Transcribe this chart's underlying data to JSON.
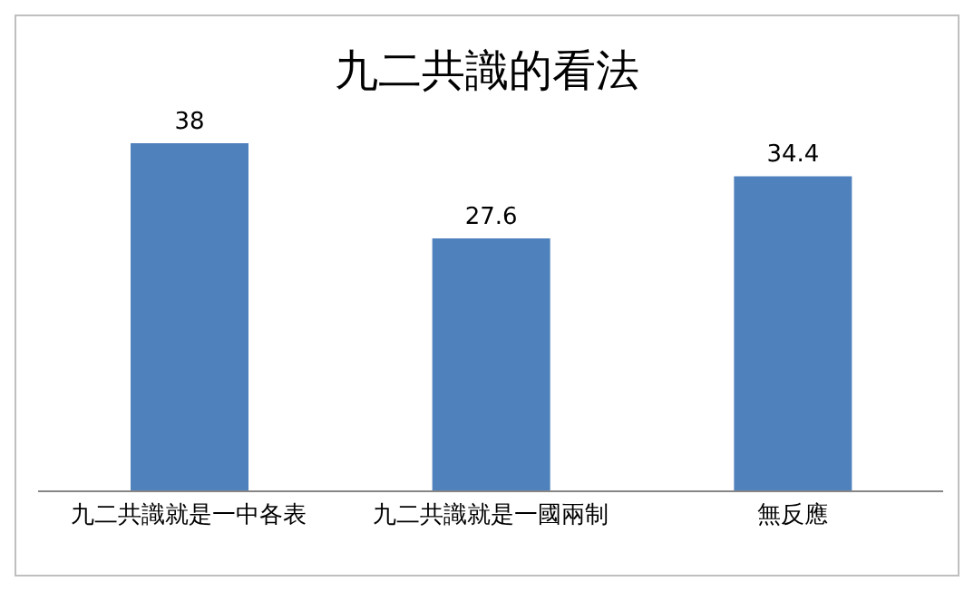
{
  "chart_data": {
    "type": "bar",
    "title": "九二共識的看法",
    "categories": [
      "九二共識就是一中各表",
      "九二共識就是一國兩制",
      "無反應"
    ],
    "values": [
      38,
      27.6,
      34.4
    ],
    "color": "#4f81bd",
    "data_labels": true
  }
}
